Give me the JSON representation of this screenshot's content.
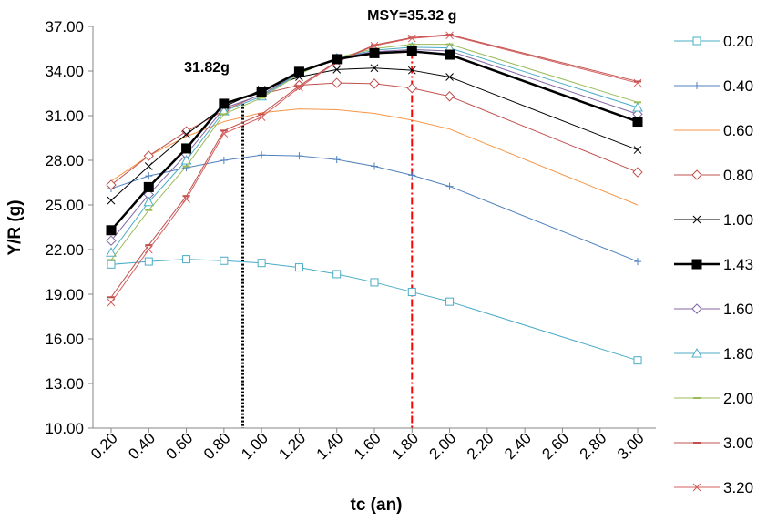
{
  "chart_data": {
    "type": "line",
    "xlabel": "tc (an)",
    "ylabel": "Y/R (g)",
    "x_ticks": [
      "0.20",
      "0.40",
      "0.60",
      "0.80",
      "1.00",
      "1.20",
      "1.40",
      "1.60",
      "1.80",
      "2.00",
      "2.20",
      "2.40",
      "2.60",
      "2.80",
      "3.00"
    ],
    "y_ticks": [
      "10.00",
      "13.00",
      "16.00",
      "19.00",
      "22.00",
      "25.00",
      "28.00",
      "31.00",
      "34.00",
      "37.00"
    ],
    "xlim": [
      0.2,
      3.0
    ],
    "ylim": [
      10,
      37
    ],
    "grid": false,
    "legend_position": "right",
    "annotations": {
      "left_label": "31.82g",
      "left_x": 0.9,
      "left_y": 31.82,
      "msy_label": "MSY=35.32 g",
      "msy_x": 1.8,
      "msy_y": 35.32
    },
    "x": [
      0.2,
      0.4,
      0.6,
      0.8,
      1.0,
      1.2,
      1.4,
      1.6,
      1.8,
      2.0,
      3.0
    ],
    "series": [
      {
        "name": "0.20",
        "color": "#4aacc6",
        "marker": "square-open",
        "width": 1,
        "values": [
          21.0,
          21.2,
          21.35,
          21.25,
          21.1,
          20.8,
          20.35,
          19.8,
          19.15,
          18.5,
          14.55
        ]
      },
      {
        "name": "0.40",
        "color": "#4f81bd",
        "marker": "plus",
        "width": 1,
        "values": [
          26.1,
          26.95,
          27.5,
          28.0,
          28.35,
          28.3,
          28.05,
          27.6,
          27.0,
          26.25,
          21.2
        ]
      },
      {
        "name": "0.60",
        "color": "#f79646",
        "marker": "none",
        "width": 1,
        "values": [
          26.6,
          28.3,
          29.6,
          30.6,
          31.2,
          31.45,
          31.4,
          31.15,
          30.7,
          30.1,
          25.0
        ]
      },
      {
        "name": "0.80",
        "color": "#c0504d",
        "marker": "diamond-open",
        "width": 1,
        "values": [
          26.35,
          28.3,
          29.95,
          31.35,
          32.45,
          33.05,
          33.2,
          33.15,
          32.85,
          32.3,
          27.2
        ]
      },
      {
        "name": "1.00",
        "color": "#000000",
        "marker": "x",
        "width": 1,
        "values": [
          25.3,
          27.6,
          29.75,
          31.6,
          32.75,
          33.6,
          34.1,
          34.2,
          34.05,
          33.6,
          28.7
        ]
      },
      {
        "name": "1.43",
        "color": "#000000",
        "marker": "square-filled",
        "width": 2.5,
        "values": [
          23.3,
          26.2,
          28.8,
          31.8,
          32.6,
          33.95,
          34.8,
          35.2,
          35.32,
          35.1,
          30.6
        ]
      },
      {
        "name": "1.60",
        "color": "#8064a2",
        "marker": "diamond-open",
        "width": 1,
        "values": [
          22.6,
          25.7,
          28.4,
          31.5,
          32.4,
          33.9,
          34.85,
          35.3,
          35.45,
          35.35,
          31.1
        ]
      },
      {
        "name": "1.80",
        "color": "#4bacc6",
        "marker": "triangle-open",
        "width": 1,
        "values": [
          21.8,
          25.2,
          28.0,
          31.3,
          32.3,
          33.85,
          34.85,
          35.4,
          35.6,
          35.55,
          31.55
        ]
      },
      {
        "name": "2.00",
        "color": "#9bbb59",
        "marker": "dash",
        "width": 1,
        "values": [
          21.3,
          24.65,
          27.6,
          31.1,
          32.2,
          33.8,
          34.9,
          35.5,
          35.8,
          35.8,
          31.9
        ]
      },
      {
        "name": "3.00",
        "color": "#c0504d",
        "marker": "dash",
        "width": 1,
        "values": [
          18.8,
          22.3,
          25.6,
          30.0,
          31.1,
          33.0,
          34.65,
          35.75,
          36.25,
          36.45,
          33.3
        ]
      },
      {
        "name": "3.20",
        "color": "#d55e5e",
        "marker": "x",
        "width": 1,
        "values": [
          18.45,
          22.0,
          25.4,
          29.8,
          30.9,
          32.9,
          34.6,
          35.7,
          36.2,
          36.4,
          33.2
        ]
      }
    ]
  }
}
